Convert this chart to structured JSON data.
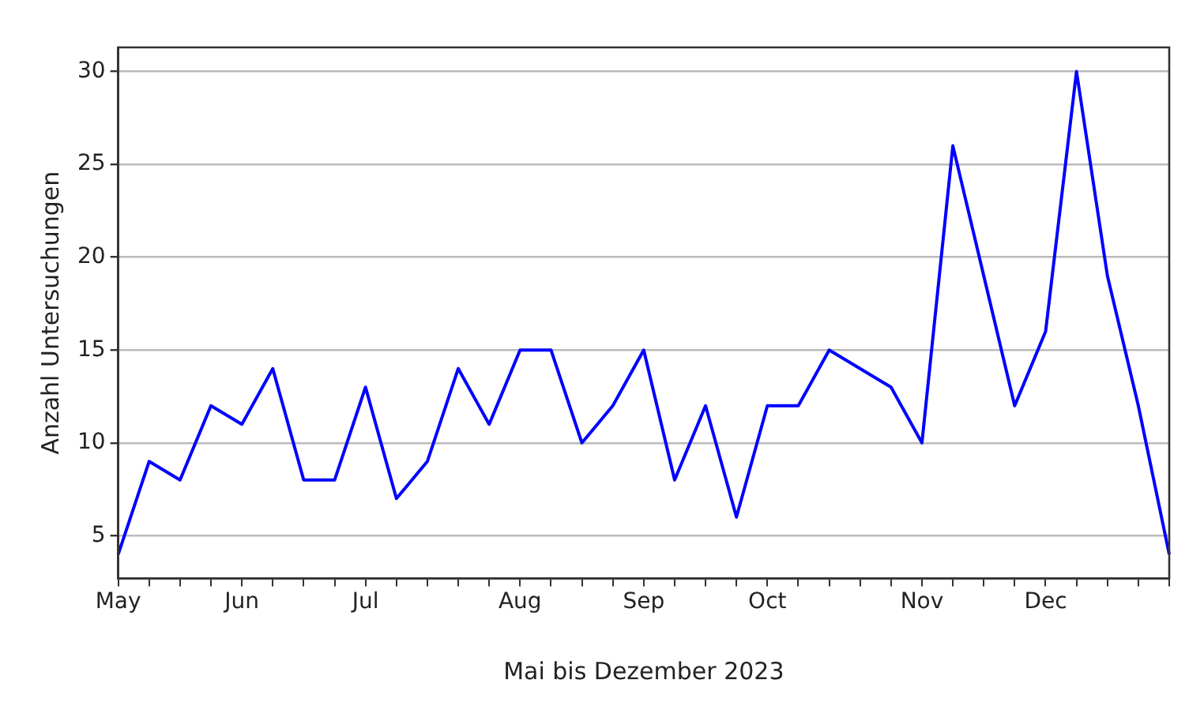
{
  "chart_data": {
    "type": "line",
    "xlabel": "Mai bis Dezember 2023",
    "ylabel": "Anzahl Untersuchungen",
    "categories": [
      "May",
      null,
      null,
      null,
      "Jun",
      null,
      null,
      null,
      "Jul",
      null,
      null,
      null,
      null,
      "Aug",
      null,
      null,
      null,
      "Sep",
      null,
      null,
      null,
      "Oct",
      null,
      null,
      null,
      null,
      "Nov",
      null,
      null,
      null,
      "Dec",
      null,
      null,
      null,
      null
    ],
    "series": [
      {
        "color": "#0000ff",
        "values": [
          4,
          9,
          8,
          12,
          11,
          14,
          8,
          8,
          13,
          7,
          9,
          14,
          11,
          15,
          15,
          10,
          12,
          15,
          8,
          12,
          6,
          12,
          12,
          15,
          14,
          13,
          10,
          26,
          19,
          12,
          16,
          30,
          19,
          12,
          4
        ]
      }
    ],
    "ylim": [
      2.7,
      31.3
    ],
    "yticks": [
      5,
      10,
      15,
      20,
      25,
      30
    ],
    "grid": "y",
    "legend": false,
    "marker": "none",
    "line_style": "solid"
  }
}
